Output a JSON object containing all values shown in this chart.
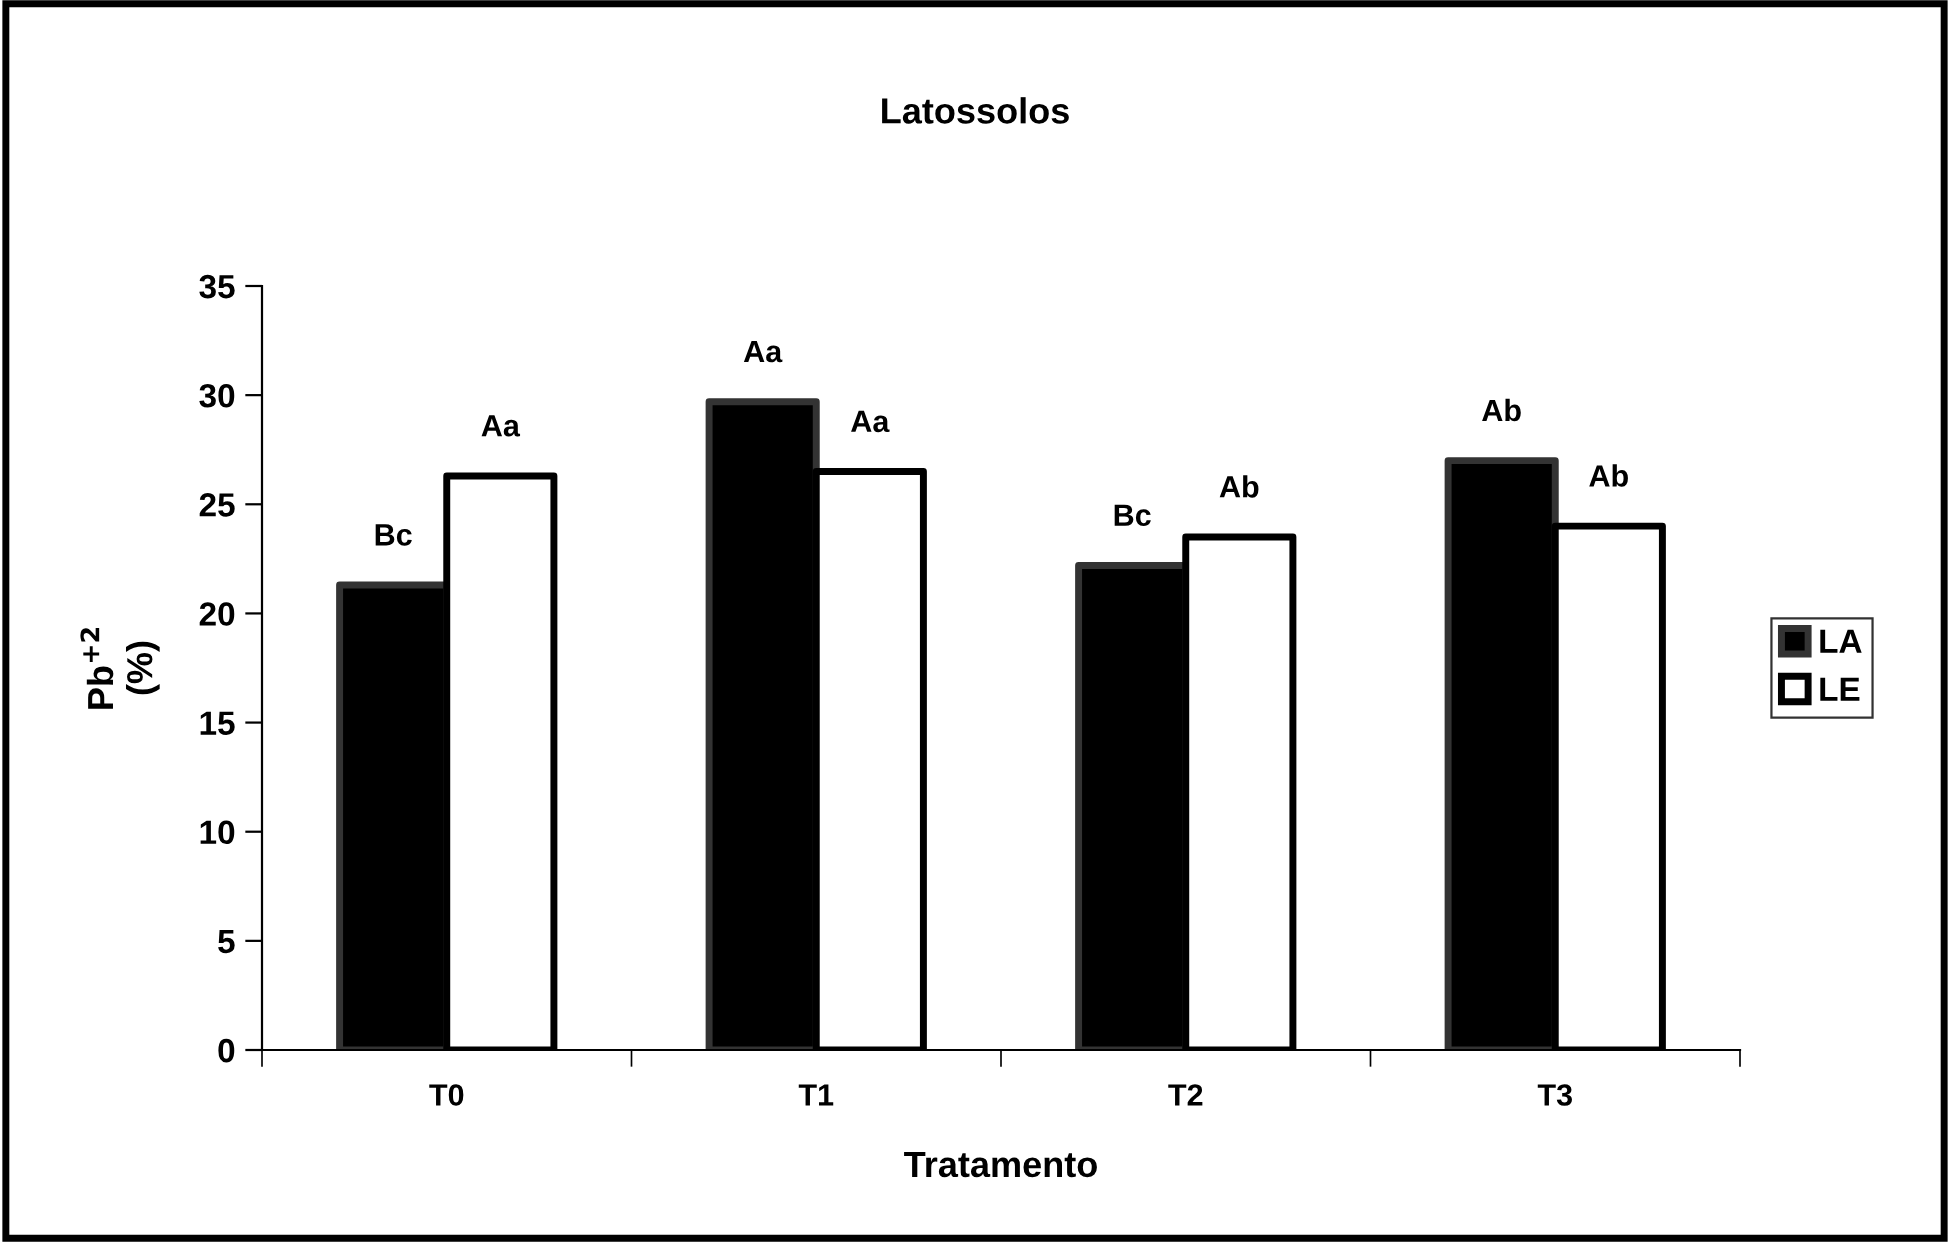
{
  "chart_data": {
    "type": "bar",
    "title": "Latossolos",
    "xlabel": "Tratamento",
    "ylabel": "Pb$^{+2}$\n(%)",
    "categories": [
      "T0",
      "T1",
      "T2",
      "T3"
    ],
    "series": [
      {
        "name": "LA",
        "color": "#000000",
        "values": [
          21.3,
          29.7,
          22.2,
          27.0
        ],
        "value_labels": [
          "Bc",
          "Aa",
          "Bc",
          "Ab"
        ]
      },
      {
        "name": "LE",
        "color": "#ffffff",
        "values": [
          26.3,
          26.5,
          23.5,
          24.0
        ],
        "value_labels": [
          "Aa",
          "Aa",
          "Ab",
          "Ab"
        ]
      }
    ],
    "ylim": [
      0,
      35
    ],
    "yticks": [
      0,
      5,
      10,
      15,
      20,
      25,
      30,
      35
    ],
    "grid": false,
    "legend": "right"
  }
}
